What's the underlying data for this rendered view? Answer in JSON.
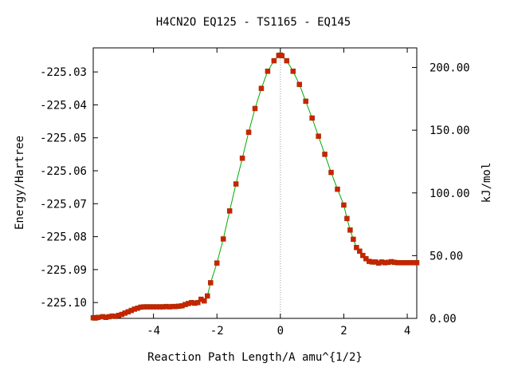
{
  "chart_data": {
    "type": "scatter",
    "title": "H4CN2O   EQ125 - TS1165 - EQ145",
    "xlabel": "Reaction Path Length/A amu^{1/2}",
    "ylabel": "Energy/Hartree",
    "ylabel2": "kJ/mol",
    "xlim": [
      -5.9,
      4.3
    ],
    "ylim": [
      -225.1048,
      -225.0227
    ],
    "y2lim": [
      0.0,
      215.6
    ],
    "xticks": [
      -4,
      -2,
      0,
      2,
      4
    ],
    "xtick_labels": [
      "-4",
      "-2",
      "0",
      "2",
      "4"
    ],
    "yticks": [
      -225.03,
      -225.04,
      -225.05,
      -225.06,
      -225.07,
      -225.08,
      -225.09,
      -225.1
    ],
    "ytick_labels": [
      "-225.03",
      "-225.04",
      "-225.05",
      "-225.06",
      "-225.07",
      "-225.08",
      "-225.09",
      "-225.10"
    ],
    "y2ticks": [
      0,
      50,
      100,
      150,
      200
    ],
    "y2tick_labels": [
      "0.00",
      "50.00",
      "100.00",
      "150.00",
      "200.00"
    ],
    "ts_line_x": 0,
    "colors": {
      "points": "#cc2200",
      "curve": "#00aa00",
      "ts_line": "#999999",
      "axes": "#000000"
    },
    "series": [
      {
        "x": [
          -5.9,
          -5.85,
          -5.8,
          -5.75,
          -5.6,
          -5.5,
          -5.4,
          -5.3,
          -5.2,
          -5.1,
          -5.0,
          -4.9,
          -4.8,
          -4.7,
          -4.6,
          -4.5,
          -4.4,
          -4.3,
          -4.2,
          -4.1,
          -4.0,
          -3.9,
          -3.8,
          -3.7,
          -3.6,
          -3.5,
          -3.4,
          -3.3,
          -3.2,
          -3.1,
          -3.0,
          -2.9,
          -2.8,
          -2.7,
          -2.6,
          -2.5,
          -2.4,
          -2.3,
          -2.2,
          -2.0,
          -1.8,
          -1.6,
          -1.4,
          -1.2,
          -1.0,
          -0.8,
          -0.6,
          -0.4,
          -0.2,
          -0.05,
          0.0,
          0.05,
          0.2,
          0.4,
          0.6,
          0.8,
          1.0,
          1.2,
          1.4,
          1.6,
          1.8,
          2.0,
          2.1,
          2.2,
          2.3,
          2.4,
          2.5,
          2.6,
          2.7,
          2.8,
          2.9,
          3.0,
          3.1,
          3.2,
          3.3,
          3.4,
          3.5,
          3.6,
          3.7,
          3.8,
          3.9,
          4.0,
          4.1,
          4.2,
          4.3
        ],
        "y": [
          -225.1046,
          -225.1047,
          -225.1046,
          -225.1045,
          -225.1043,
          -225.1045,
          -225.1043,
          -225.1041,
          -225.1042,
          -225.1039,
          -225.1036,
          -225.1032,
          -225.1028,
          -225.1024,
          -225.102,
          -225.1017,
          -225.1014,
          -225.1013,
          -225.1013,
          -225.1013,
          -225.1013,
          -225.1013,
          -225.1013,
          -225.1013,
          -225.1012,
          -225.1013,
          -225.1012,
          -225.1012,
          -225.1011,
          -225.101,
          -225.1006,
          -225.1003,
          -225.1,
          -225.1002,
          -225.1,
          -225.099,
          -225.0995,
          -225.098,
          -225.094,
          -225.088,
          -225.0807,
          -225.0722,
          -225.064,
          -225.0562,
          -225.0483,
          -225.0411,
          -225.035,
          -225.0298,
          -225.0266,
          -225.025,
          -225.0249,
          -225.0251,
          -225.0266,
          -225.0298,
          -225.0338,
          -225.0389,
          -225.044,
          -225.0495,
          -225.055,
          -225.0605,
          -225.0656,
          -225.0704,
          -225.0745,
          -225.078,
          -225.0808,
          -225.0833,
          -225.0844,
          -225.0857,
          -225.0867,
          -225.0875,
          -225.0877,
          -225.0877,
          -225.088,
          -225.0877,
          -225.0879,
          -225.0878,
          -225.0876,
          -225.0878,
          -225.0879,
          -225.0879,
          -225.0879,
          -225.0879,
          -225.0879,
          -225.0879,
          -225.0879
        ]
      }
    ]
  }
}
